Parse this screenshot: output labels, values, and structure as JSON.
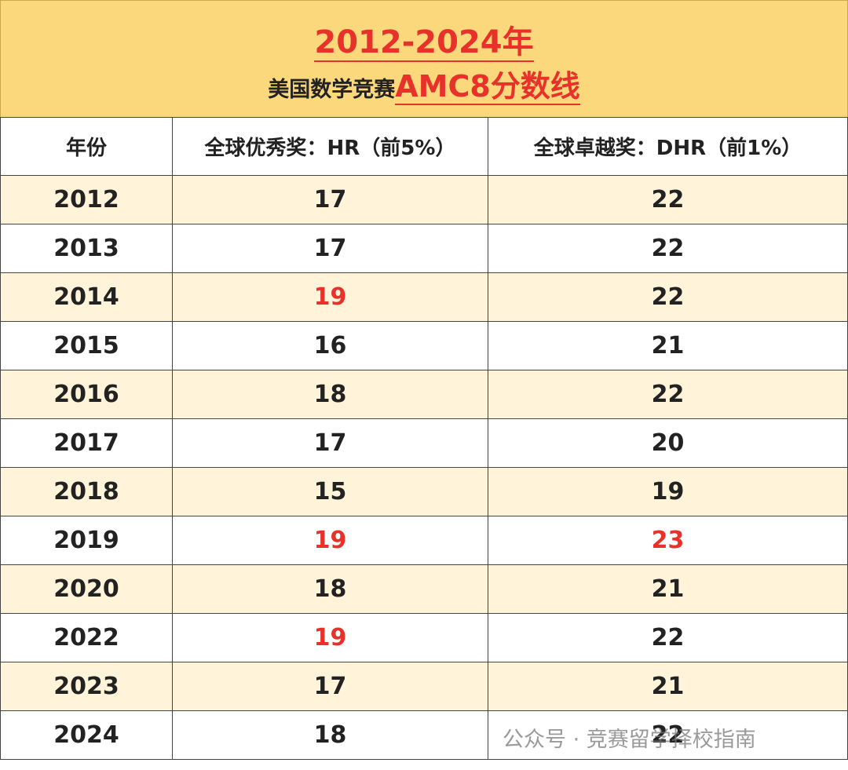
{
  "header": {
    "title": "2012-2024年",
    "subtitle_prefix": "美国数学竞赛",
    "subtitle_highlight": "AMC8分数线"
  },
  "table": {
    "columns": [
      "年份",
      "全球优秀奖：HR（前5%）",
      "全球卓越奖：DHR（前1%）"
    ],
    "rows": [
      [
        2012,
        17,
        22
      ],
      [
        2013,
        17,
        22
      ],
      [
        2014,
        19,
        22
      ],
      [
        2015,
        16,
        21
      ],
      [
        2016,
        18,
        22
      ],
      [
        2017,
        17,
        20
      ],
      [
        2018,
        15,
        19
      ],
      [
        2019,
        19,
        23
      ],
      [
        2020,
        18,
        21
      ],
      [
        2022,
        19,
        22
      ],
      [
        2023,
        17,
        21
      ],
      [
        2024,
        18,
        22
      ]
    ]
  },
  "watermark": "公众号 · 竞赛留学择校指南"
}
